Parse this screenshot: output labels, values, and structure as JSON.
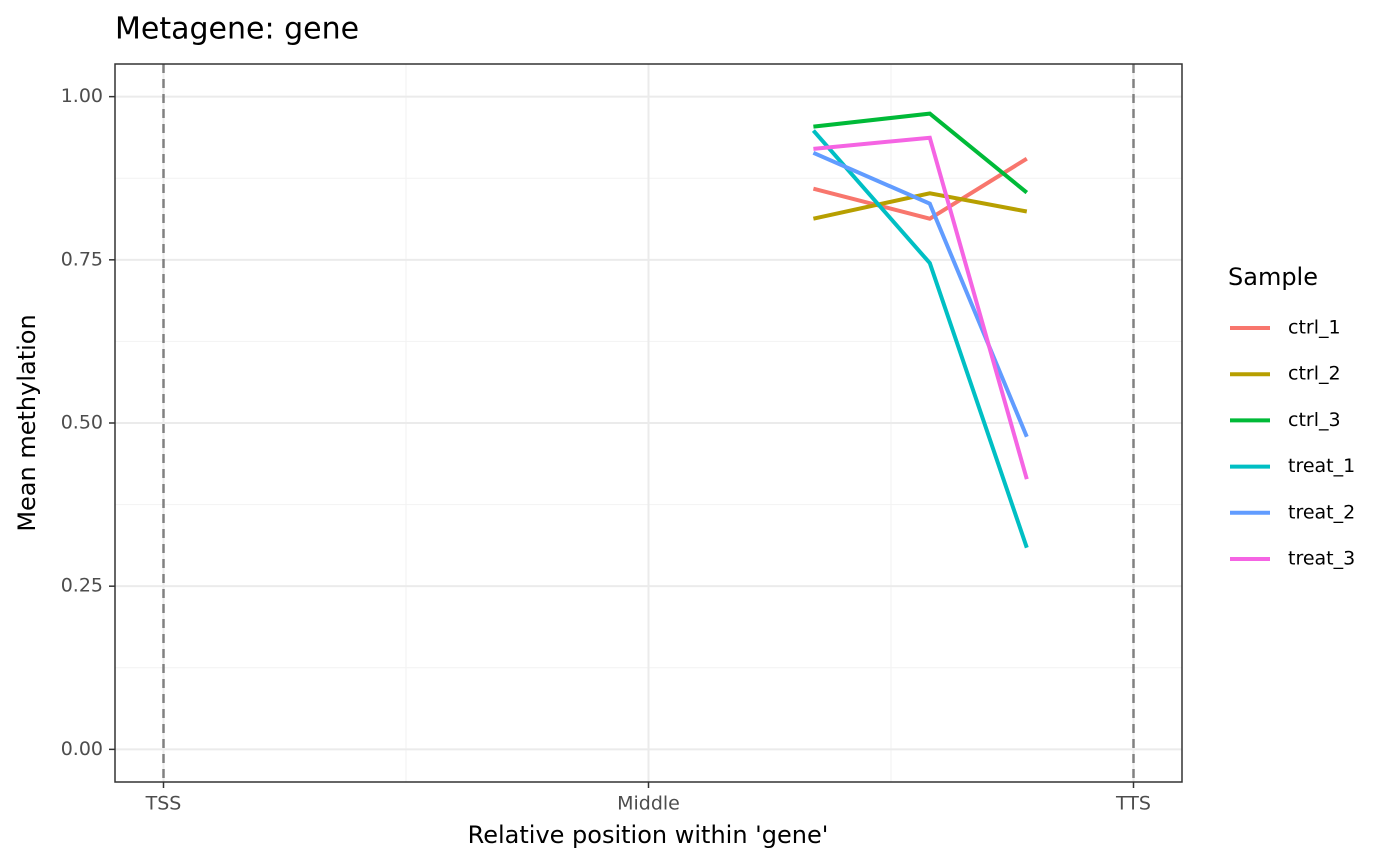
{
  "chart_data": {
    "type": "line",
    "title": "Metagene: gene",
    "x_label": "Relative position within 'gene'",
    "y_label": "Mean methylation",
    "legend_title": "Sample",
    "legend": "right",
    "x": [
      0.67,
      0.79,
      0.89
    ],
    "series": [
      {
        "name": "ctrl_1",
        "color": "#F8766D",
        "values": [
          0.859,
          0.813,
          0.905
        ]
      },
      {
        "name": "ctrl_2",
        "color": "#B79F00",
        "values": [
          0.813,
          0.852,
          0.824
        ]
      },
      {
        "name": "ctrl_3",
        "color": "#00BA38",
        "values": [
          0.954,
          0.974,
          0.853
        ]
      },
      {
        "name": "treat_1",
        "color": "#00BFC4",
        "values": [
          0.948,
          0.745,
          0.309
        ]
      },
      {
        "name": "treat_2",
        "color": "#619CFF",
        "values": [
          0.914,
          0.836,
          0.479
        ]
      },
      {
        "name": "treat_3",
        "color": "#F564E3",
        "values": [
          0.92,
          0.937,
          0.414
        ]
      }
    ],
    "xlim": [
      -0.05,
      1.05
    ],
    "ylim": [
      -0.05,
      1.05
    ],
    "xticks": [
      {
        "value": 0,
        "label": "TSS"
      },
      {
        "value": 0.5,
        "label": "Middle"
      },
      {
        "value": 1,
        "label": "TTS"
      }
    ],
    "yticks": [
      {
        "value": 0,
        "label": "0.00"
      },
      {
        "value": 0.25,
        "label": "0.25"
      },
      {
        "value": 0.5,
        "label": "0.50"
      },
      {
        "value": 0.75,
        "label": "0.75"
      },
      {
        "value": 1,
        "label": "1.00"
      }
    ],
    "xminor": [
      0.25,
      0.75
    ],
    "yminor": [
      0.125,
      0.375,
      0.625,
      0.875
    ],
    "vlines": [
      0,
      1
    ],
    "grid": true
  }
}
